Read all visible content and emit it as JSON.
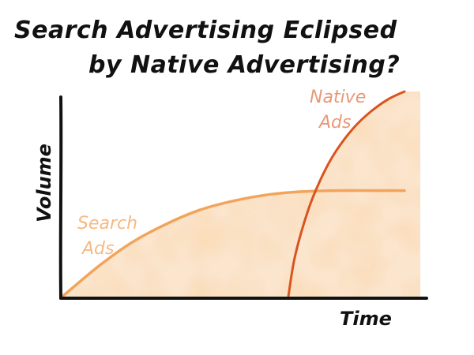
{
  "chart_data": {
    "type": "line",
    "title_lines": [
      "Search Advertising Eclipsed",
      "by Native Advertising?"
    ],
    "xlabel": "Time",
    "ylabel": "Volume",
    "xlim": [
      0,
      10
    ],
    "ylim": [
      0,
      10
    ],
    "grid": false,
    "series": [
      {
        "name": "Search Ads",
        "label_lines": [
          "Search",
          "Ads"
        ],
        "color": "#f2a45a",
        "x": [
          0,
          1,
          2,
          3,
          4,
          5,
          6,
          7,
          8,
          9,
          10
        ],
        "y": [
          0,
          1.4,
          2.6,
          3.5,
          4.2,
          4.65,
          4.95,
          5.1,
          5.15,
          5.15,
          5.15
        ]
      },
      {
        "name": "Native Ads",
        "label_lines": [
          "Native",
          "Ads"
        ],
        "color": "#d9541e",
        "x": [
          6.6,
          6.8,
          7.2,
          7.6,
          8.0,
          8.5,
          9.0,
          9.5,
          10
        ],
        "y": [
          0,
          2.0,
          4.3,
          5.9,
          7.1,
          8.2,
          9.0,
          9.6,
          10
        ]
      }
    ],
    "fill_color": "#f6c590",
    "axis_color": "#111111"
  }
}
